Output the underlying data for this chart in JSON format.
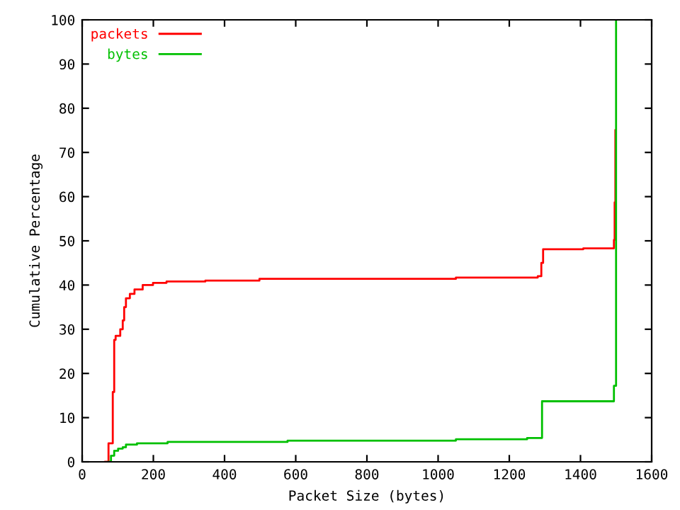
{
  "chart_data": {
    "type": "step",
    "xlabel": "Packet Size (bytes)",
    "ylabel": "Cumulative Percentage",
    "xlim": [
      0,
      1600
    ],
    "ylim": [
      0,
      100
    ],
    "xticks": [
      0,
      200,
      400,
      600,
      800,
      1000,
      1200,
      1400,
      1600
    ],
    "yticks": [
      0,
      10,
      20,
      30,
      40,
      50,
      60,
      70,
      80,
      90,
      100
    ],
    "grid": false,
    "legend": "top left",
    "marker": "none",
    "line_style": "solid",
    "series": [
      {
        "name": "packets",
        "color": "#ff0000",
        "x": [
          65,
          74,
          86,
          90,
          94,
          107,
          114,
          118,
          123,
          134,
          147,
          170,
          199,
          237,
          346,
          498,
          1050,
          1280,
          1290,
          1295,
          1408,
          1494,
          1496,
          1498
        ],
        "values": [
          0,
          4.2,
          15.8,
          27.6,
          28.5,
          30,
          32,
          35,
          37,
          38,
          39,
          40,
          40.5,
          40.8,
          41,
          41.4,
          41.7,
          42,
          45,
          48.1,
          48.3,
          50.2,
          58.7,
          75
        ]
      },
      {
        "name": "bytes",
        "color": "#00c000",
        "x": [
          74,
          81,
          90,
          101,
          114,
          123,
          154,
          240,
          577,
          1050,
          1250,
          1292,
          1494,
          1500
        ],
        "values": [
          0,
          1.4,
          2.5,
          3,
          3.3,
          3.9,
          4.2,
          4.5,
          4.8,
          5.1,
          5.4,
          13.7,
          17.2,
          100
        ]
      }
    ]
  }
}
